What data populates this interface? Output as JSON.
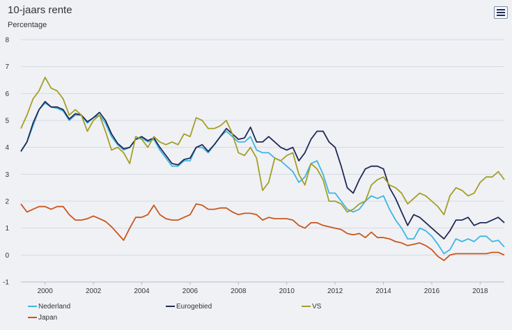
{
  "title": "10-jaars rente",
  "subtitle": "Percentage",
  "menu_icon": "hamburger-menu-icon",
  "chart_data": {
    "type": "line",
    "ylim": [
      -1,
      8
    ],
    "y_ticks": [
      -1,
      0,
      1,
      2,
      3,
      4,
      5,
      6,
      7,
      8
    ],
    "x_ticks": [
      2000,
      2002,
      2004,
      2006,
      2008,
      2010,
      2012,
      2014,
      2016,
      2018
    ],
    "xlim": [
      1999.0,
      2019.0
    ],
    "grid": "horizontal",
    "legend_position": "bottom",
    "series": [
      {
        "name": "Nederland",
        "color": "#3cb6e3",
        "x": [
          1999.0,
          1999.25,
          1999.5,
          1999.75,
          2000.0,
          2000.25,
          2000.5,
          2000.75,
          2001.0,
          2001.25,
          2001.5,
          2001.75,
          2002.0,
          2002.25,
          2002.5,
          2002.75,
          2003.0,
          2003.25,
          2003.5,
          2003.75,
          2004.0,
          2004.25,
          2004.5,
          2004.75,
          2005.0,
          2005.25,
          2005.5,
          2005.75,
          2006.0,
          2006.25,
          2006.5,
          2006.75,
          2007.0,
          2007.25,
          2007.5,
          2007.75,
          2008.0,
          2008.25,
          2008.5,
          2008.75,
          2009.0,
          2009.25,
          2009.5,
          2009.75,
          2010.0,
          2010.25,
          2010.5,
          2010.75,
          2011.0,
          2011.25,
          2011.5,
          2011.75,
          2012.0,
          2012.25,
          2012.5,
          2012.75,
          2013.0,
          2013.25,
          2013.5,
          2013.75,
          2014.0,
          2014.25,
          2014.5,
          2014.75,
          2015.0,
          2015.25,
          2015.5,
          2015.75,
          2016.0,
          2016.25,
          2016.5,
          2016.75,
          2017.0,
          2017.25,
          2017.5,
          2017.75,
          2018.0,
          2018.25,
          2018.5,
          2018.75,
          2019.0
        ],
        "values": [
          3.85,
          4.2,
          4.8,
          5.4,
          5.65,
          5.5,
          5.45,
          5.35,
          5.0,
          5.2,
          5.2,
          4.9,
          5.1,
          5.2,
          4.9,
          4.4,
          4.1,
          3.9,
          4.0,
          4.3,
          4.35,
          4.2,
          4.3,
          3.9,
          3.6,
          3.3,
          3.3,
          3.5,
          3.5,
          4.0,
          4.0,
          3.8,
          4.1,
          4.4,
          4.6,
          4.4,
          4.2,
          4.2,
          4.4,
          3.9,
          3.8,
          3.8,
          3.6,
          3.5,
          3.3,
          3.1,
          2.7,
          2.9,
          3.4,
          3.5,
          3.0,
          2.3,
          2.3,
          2.0,
          1.7,
          1.6,
          1.7,
          2.0,
          2.2,
          2.1,
          2.2,
          1.7,
          1.3,
          1.0,
          0.6,
          0.6,
          1.0,
          0.9,
          0.7,
          0.4,
          0.05,
          0.2,
          0.6,
          0.5,
          0.6,
          0.5,
          0.7,
          0.7,
          0.5,
          0.55,
          0.3
        ]
      },
      {
        "name": "Eurogebied",
        "color": "#1f2a55",
        "x": [
          1999.0,
          1999.25,
          1999.5,
          1999.75,
          2000.0,
          2000.25,
          2000.5,
          2000.75,
          2001.0,
          2001.25,
          2001.5,
          2001.75,
          2002.0,
          2002.25,
          2002.5,
          2002.75,
          2003.0,
          2003.25,
          2003.5,
          2003.75,
          2004.0,
          2004.25,
          2004.5,
          2004.75,
          2005.0,
          2005.25,
          2005.5,
          2005.75,
          2006.0,
          2006.25,
          2006.5,
          2006.75,
          2007.0,
          2007.25,
          2007.5,
          2007.75,
          2008.0,
          2008.25,
          2008.5,
          2008.75,
          2009.0,
          2009.25,
          2009.5,
          2009.75,
          2010.0,
          2010.25,
          2010.5,
          2010.75,
          2011.0,
          2011.25,
          2011.5,
          2011.75,
          2012.0,
          2012.25,
          2012.5,
          2012.75,
          2013.0,
          2013.25,
          2013.5,
          2013.75,
          2014.0,
          2014.25,
          2014.5,
          2014.75,
          2015.0,
          2015.25,
          2015.5,
          2015.75,
          2016.0,
          2016.25,
          2016.5,
          2016.75,
          2017.0,
          2017.25,
          2017.5,
          2017.75,
          2018.0,
          2018.25,
          2018.5,
          2018.75,
          2019.0
        ],
        "values": [
          3.85,
          4.2,
          4.9,
          5.4,
          5.7,
          5.5,
          5.5,
          5.4,
          5.05,
          5.25,
          5.2,
          4.95,
          5.1,
          5.3,
          5.0,
          4.5,
          4.15,
          3.95,
          4.0,
          4.3,
          4.4,
          4.25,
          4.35,
          4.0,
          3.7,
          3.4,
          3.35,
          3.55,
          3.6,
          4.0,
          4.1,
          3.85,
          4.1,
          4.4,
          4.7,
          4.5,
          4.3,
          4.35,
          4.75,
          4.2,
          4.2,
          4.4,
          4.2,
          4.0,
          3.9,
          4.0,
          3.5,
          3.8,
          4.3,
          4.6,
          4.6,
          4.2,
          4.0,
          3.3,
          2.5,
          2.3,
          2.8,
          3.2,
          3.3,
          3.3,
          3.2,
          2.5,
          2.1,
          1.6,
          1.1,
          1.5,
          1.4,
          1.2,
          1.0,
          0.8,
          0.6,
          0.9,
          1.3,
          1.3,
          1.4,
          1.1,
          1.2,
          1.2,
          1.3,
          1.4,
          1.2
        ]
      },
      {
        "name": "VS",
        "color": "#a39f25",
        "x": [
          1999.0,
          1999.25,
          1999.5,
          1999.75,
          2000.0,
          2000.25,
          2000.5,
          2000.75,
          2001.0,
          2001.25,
          2001.5,
          2001.75,
          2002.0,
          2002.25,
          2002.5,
          2002.75,
          2003.0,
          2003.25,
          2003.5,
          2003.75,
          2004.0,
          2004.25,
          2004.5,
          2004.75,
          2005.0,
          2005.25,
          2005.5,
          2005.75,
          2006.0,
          2006.25,
          2006.5,
          2006.75,
          2007.0,
          2007.25,
          2007.5,
          2007.75,
          2008.0,
          2008.25,
          2008.5,
          2008.75,
          2009.0,
          2009.25,
          2009.5,
          2009.75,
          2010.0,
          2010.25,
          2010.5,
          2010.75,
          2011.0,
          2011.25,
          2011.5,
          2011.75,
          2012.0,
          2012.25,
          2012.5,
          2012.75,
          2013.0,
          2013.25,
          2013.5,
          2013.75,
          2014.0,
          2014.25,
          2014.5,
          2014.75,
          2015.0,
          2015.25,
          2015.5,
          2015.75,
          2016.0,
          2016.25,
          2016.5,
          2016.75,
          2017.0,
          2017.25,
          2017.5,
          2017.75,
          2018.0,
          2018.25,
          2018.5,
          2018.75,
          2019.0
        ],
        "values": [
          4.7,
          5.2,
          5.8,
          6.1,
          6.6,
          6.2,
          6.1,
          5.8,
          5.2,
          5.4,
          5.2,
          4.6,
          5.0,
          5.2,
          4.6,
          3.9,
          4.0,
          3.8,
          3.4,
          4.4,
          4.3,
          4.0,
          4.4,
          4.2,
          4.1,
          4.2,
          4.1,
          4.5,
          4.4,
          5.1,
          5.0,
          4.7,
          4.7,
          4.8,
          5.0,
          4.5,
          3.8,
          3.7,
          4.0,
          3.6,
          2.4,
          2.7,
          3.6,
          3.5,
          3.7,
          3.8,
          3.0,
          2.6,
          3.4,
          3.2,
          2.8,
          2.0,
          2.0,
          1.9,
          1.6,
          1.7,
          1.9,
          2.0,
          2.6,
          2.8,
          2.9,
          2.6,
          2.5,
          2.3,
          1.9,
          2.1,
          2.3,
          2.2,
          2.0,
          1.8,
          1.5,
          2.2,
          2.5,
          2.4,
          2.2,
          2.3,
          2.7,
          2.9,
          2.9,
          3.1,
          2.8
        ]
      },
      {
        "name": "Japan",
        "color": "#c8571b",
        "x": [
          1999.0,
          1999.25,
          1999.5,
          1999.75,
          2000.0,
          2000.25,
          2000.5,
          2000.75,
          2001.0,
          2001.25,
          2001.5,
          2001.75,
          2002.0,
          2002.25,
          2002.5,
          2002.75,
          2003.0,
          2003.25,
          2003.5,
          2003.75,
          2004.0,
          2004.25,
          2004.5,
          2004.75,
          2005.0,
          2005.25,
          2005.5,
          2005.75,
          2006.0,
          2006.25,
          2006.5,
          2006.75,
          2007.0,
          2007.25,
          2007.5,
          2007.75,
          2008.0,
          2008.25,
          2008.5,
          2008.75,
          2009.0,
          2009.25,
          2009.5,
          2009.75,
          2010.0,
          2010.25,
          2010.5,
          2010.75,
          2011.0,
          2011.25,
          2011.5,
          2011.75,
          2012.0,
          2012.25,
          2012.5,
          2012.75,
          2013.0,
          2013.25,
          2013.5,
          2013.75,
          2014.0,
          2014.25,
          2014.5,
          2014.75,
          2015.0,
          2015.25,
          2015.5,
          2015.75,
          2016.0,
          2016.25,
          2016.5,
          2016.75,
          2017.0,
          2017.25,
          2017.5,
          2017.75,
          2018.0,
          2018.25,
          2018.5,
          2018.75,
          2019.0
        ],
        "values": [
          1.9,
          1.6,
          1.7,
          1.8,
          1.8,
          1.7,
          1.8,
          1.8,
          1.5,
          1.3,
          1.3,
          1.35,
          1.45,
          1.35,
          1.25,
          1.05,
          0.8,
          0.55,
          1.0,
          1.4,
          1.4,
          1.5,
          1.85,
          1.5,
          1.35,
          1.3,
          1.3,
          1.4,
          1.5,
          1.9,
          1.85,
          1.7,
          1.7,
          1.75,
          1.75,
          1.6,
          1.5,
          1.55,
          1.55,
          1.5,
          1.3,
          1.4,
          1.35,
          1.35,
          1.35,
          1.3,
          1.1,
          1.0,
          1.2,
          1.2,
          1.1,
          1.05,
          1.0,
          0.95,
          0.8,
          0.75,
          0.8,
          0.65,
          0.85,
          0.65,
          0.65,
          0.6,
          0.5,
          0.45,
          0.35,
          0.4,
          0.45,
          0.35,
          0.2,
          -0.05,
          -0.2,
          0.0,
          0.05,
          0.05,
          0.05,
          0.05,
          0.05,
          0.05,
          0.1,
          0.1,
          0.0
        ]
      }
    ]
  }
}
